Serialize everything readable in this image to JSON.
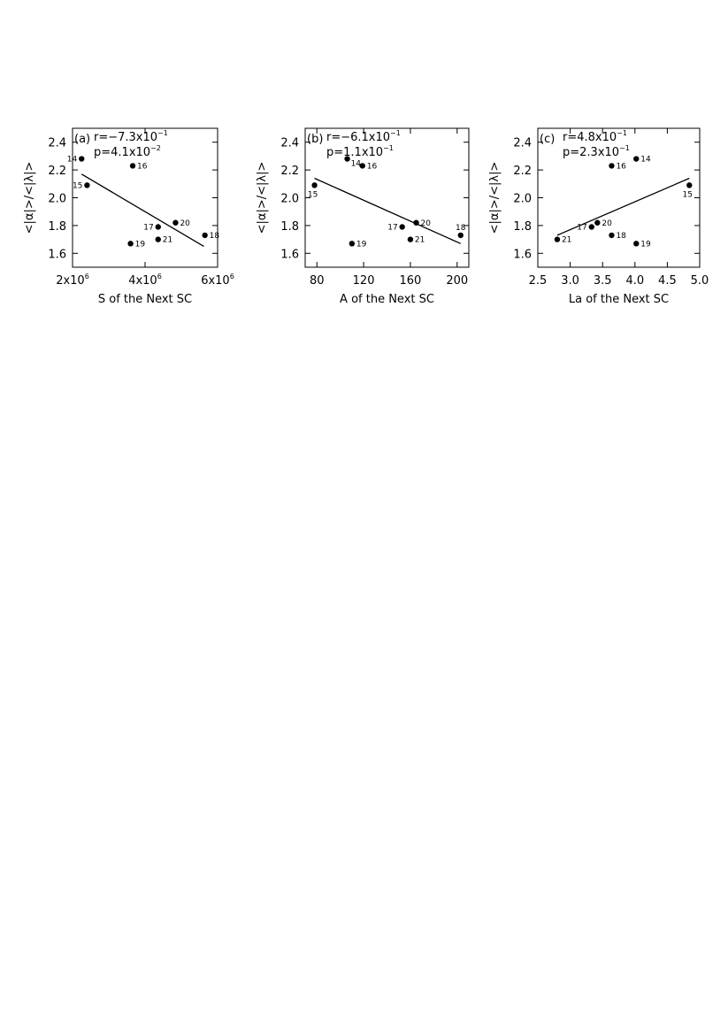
{
  "chart_data": [
    {
      "type": "scatter",
      "panel_label": "(a)",
      "r_text": "r=−7.3x10",
      "r_exp": "−1",
      "p_text": "p=4.1x10",
      "p_exp": "−2",
      "xlabel": "S of the Next SC",
      "ylabel": "<|α|>/<|λ|>",
      "xlim": [
        2000000,
        6000000
      ],
      "ylim": [
        1.5,
        2.5
      ],
      "xticks": [
        {
          "value": 2000000,
          "base": "2x10",
          "exp": "6"
        },
        {
          "value": 4000000,
          "base": "4x10",
          "exp": "6"
        },
        {
          "value": 6000000,
          "base": "6x10",
          "exp": "6"
        }
      ],
      "yticks": [
        {
          "value": 1.6,
          "label": "1.6"
        },
        {
          "value": 1.8,
          "label": "1.8"
        },
        {
          "value": 2.0,
          "label": "2.0"
        },
        {
          "value": 2.2,
          "label": "2.2"
        },
        {
          "value": 2.4,
          "label": "2.4"
        }
      ],
      "points": [
        {
          "label": "14",
          "x": 2250000,
          "y": 2.28,
          "pos": "left"
        },
        {
          "label": "15",
          "x": 2400000,
          "y": 2.09,
          "pos": "left"
        },
        {
          "label": "16",
          "x": 3660000,
          "y": 2.23,
          "pos": "right"
        },
        {
          "label": "17",
          "x": 4360000,
          "y": 1.79,
          "pos": "left"
        },
        {
          "label": "18",
          "x": 5650000,
          "y": 1.73,
          "pos": "right"
        },
        {
          "label": "19",
          "x": 3600000,
          "y": 1.67,
          "pos": "right"
        },
        {
          "label": "20",
          "x": 4840000,
          "y": 1.82,
          "pos": "right"
        },
        {
          "label": "21",
          "x": 4360000,
          "y": 1.7,
          "pos": "right"
        }
      ],
      "fit_line": {
        "x": [
          2250000,
          5620000
        ],
        "y": [
          2.17,
          1.65
        ]
      }
    },
    {
      "type": "scatter",
      "panel_label": "(b)",
      "r_text": "r=−6.1x10",
      "r_exp": "−1",
      "p_text": "p=1.1x10",
      "p_exp": "−1",
      "xlabel": "A of the Next SC",
      "ylabel": "<|α|>/<|λ|>",
      "xlim": [
        70,
        210
      ],
      "ylim": [
        1.5,
        2.5
      ],
      "xticks": [
        {
          "value": 80,
          "base": "80",
          "exp": ""
        },
        {
          "value": 120,
          "base": "120",
          "exp": ""
        },
        {
          "value": 160,
          "base": "160",
          "exp": ""
        },
        {
          "value": 200,
          "base": "200",
          "exp": ""
        }
      ],
      "yticks": [
        {
          "value": 1.6,
          "label": "1.6"
        },
        {
          "value": 1.8,
          "label": "1.8"
        },
        {
          "value": 2.0,
          "label": "2.0"
        },
        {
          "value": 2.2,
          "label": "2.2"
        },
        {
          "value": 2.4,
          "label": "2.4"
        }
      ],
      "points": [
        {
          "label": "14",
          "x": 106,
          "y": 2.28,
          "pos": "below-right"
        },
        {
          "label": "15",
          "x": 78,
          "y": 2.09,
          "pos": "below"
        },
        {
          "label": "16",
          "x": 119,
          "y": 2.23,
          "pos": "right"
        },
        {
          "label": "17",
          "x": 153,
          "y": 1.79,
          "pos": "left"
        },
        {
          "label": "18",
          "x": 203,
          "y": 1.73,
          "pos": "above"
        },
        {
          "label": "19",
          "x": 110,
          "y": 1.67,
          "pos": "right"
        },
        {
          "label": "20",
          "x": 165,
          "y": 1.82,
          "pos": "right"
        },
        {
          "label": "21",
          "x": 160,
          "y": 1.7,
          "pos": "right"
        }
      ],
      "fit_line": {
        "x": [
          78,
          203
        ],
        "y": [
          2.14,
          1.67
        ]
      }
    },
    {
      "type": "scatter",
      "panel_label": "(c)",
      "r_text": "r=4.8x10",
      "r_exp": "−1",
      "p_text": "p=2.3x10",
      "p_exp": "−1",
      "xlabel": "La of the Next SC",
      "ylabel": "<|α|>/<|λ|>",
      "xlim": [
        2.5,
        5.0
      ],
      "ylim": [
        1.5,
        2.5
      ],
      "xticks": [
        {
          "value": 2.5,
          "base": "2.5",
          "exp": ""
        },
        {
          "value": 3.0,
          "base": "3.0",
          "exp": ""
        },
        {
          "value": 3.5,
          "base": "3.5",
          "exp": ""
        },
        {
          "value": 4.0,
          "base": "4.0",
          "exp": ""
        },
        {
          "value": 4.5,
          "base": "4.5",
          "exp": ""
        },
        {
          "value": 5.0,
          "base": "5.0",
          "exp": ""
        }
      ],
      "yticks": [
        {
          "value": 1.6,
          "label": "1.6"
        },
        {
          "value": 1.8,
          "label": "1.8"
        },
        {
          "value": 2.0,
          "label": "2.0"
        },
        {
          "value": 2.2,
          "label": "2.2"
        },
        {
          "value": 2.4,
          "label": "2.4"
        }
      ],
      "points": [
        {
          "label": "14",
          "x": 4.02,
          "y": 2.28,
          "pos": "right"
        },
        {
          "label": "15",
          "x": 4.84,
          "y": 2.09,
          "pos": "below"
        },
        {
          "label": "16",
          "x": 3.64,
          "y": 2.23,
          "pos": "right"
        },
        {
          "label": "17",
          "x": 3.33,
          "y": 1.79,
          "pos": "left"
        },
        {
          "label": "18",
          "x": 3.64,
          "y": 1.73,
          "pos": "right"
        },
        {
          "label": "19",
          "x": 4.02,
          "y": 1.67,
          "pos": "right"
        },
        {
          "label": "20",
          "x": 3.42,
          "y": 1.82,
          "pos": "right"
        },
        {
          "label": "21",
          "x": 2.8,
          "y": 1.7,
          "pos": "right"
        }
      ],
      "fit_line": {
        "x": [
          2.8,
          4.84
        ],
        "y": [
          1.73,
          2.14
        ]
      }
    }
  ]
}
